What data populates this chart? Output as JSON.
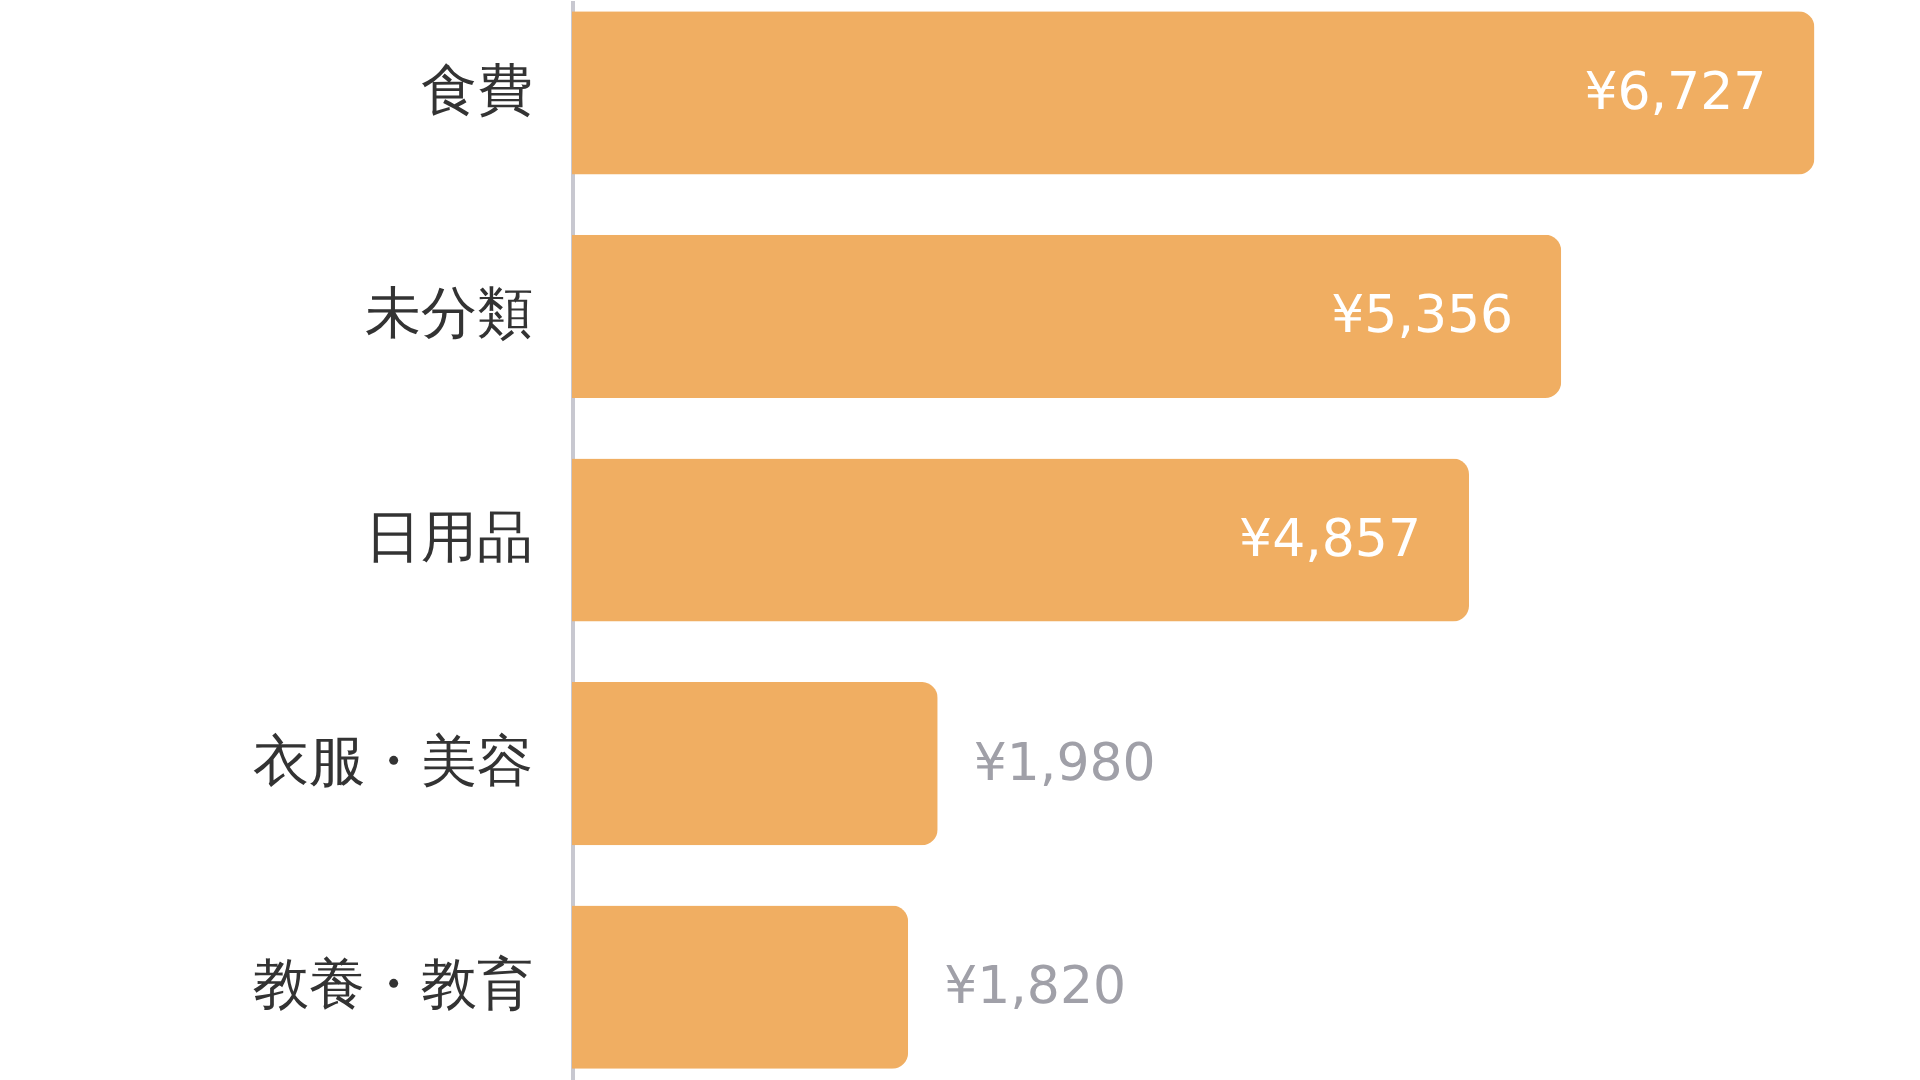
{
  "chart_data": {
    "type": "bar",
    "orientation": "horizontal",
    "categories": [
      "食費",
      "未分類",
      "日用品",
      "衣服・美容",
      "教養・教育"
    ],
    "values": [
      6727,
      5356,
      4857,
      1980,
      1820
    ],
    "value_labels": [
      "¥6,727",
      "¥5,356",
      "¥4,857",
      "¥1,980",
      "¥1,820"
    ],
    "color": "#f0ae62",
    "tick_labels": "y"
  }
}
